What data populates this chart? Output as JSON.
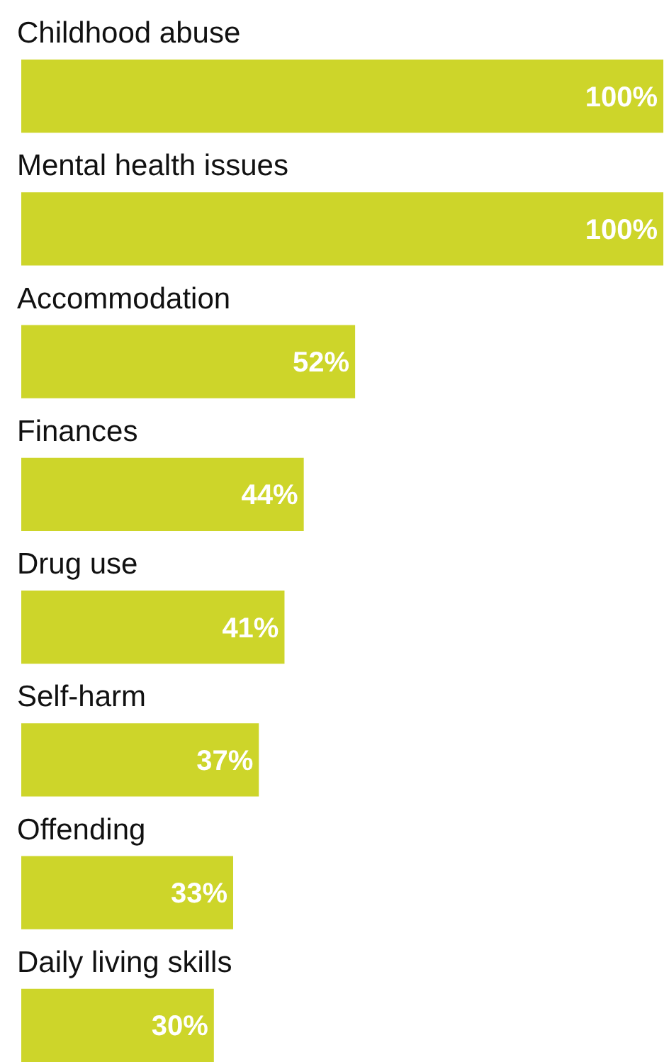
{
  "chart_data": {
    "type": "bar",
    "orientation": "horizontal",
    "categories": [
      "Childhood abuse",
      "Mental health issues",
      "Accommodation",
      "Finances",
      "Drug use",
      "Self-harm",
      "Offending",
      "Daily living skills"
    ],
    "values": [
      100,
      100,
      52,
      44,
      41,
      37,
      33,
      30
    ],
    "value_labels": [
      "100%",
      "100%",
      "52%",
      "44%",
      "41%",
      "37%",
      "33%",
      "30%"
    ],
    "color": "#cdd52a",
    "xlim": [
      0,
      100
    ]
  }
}
